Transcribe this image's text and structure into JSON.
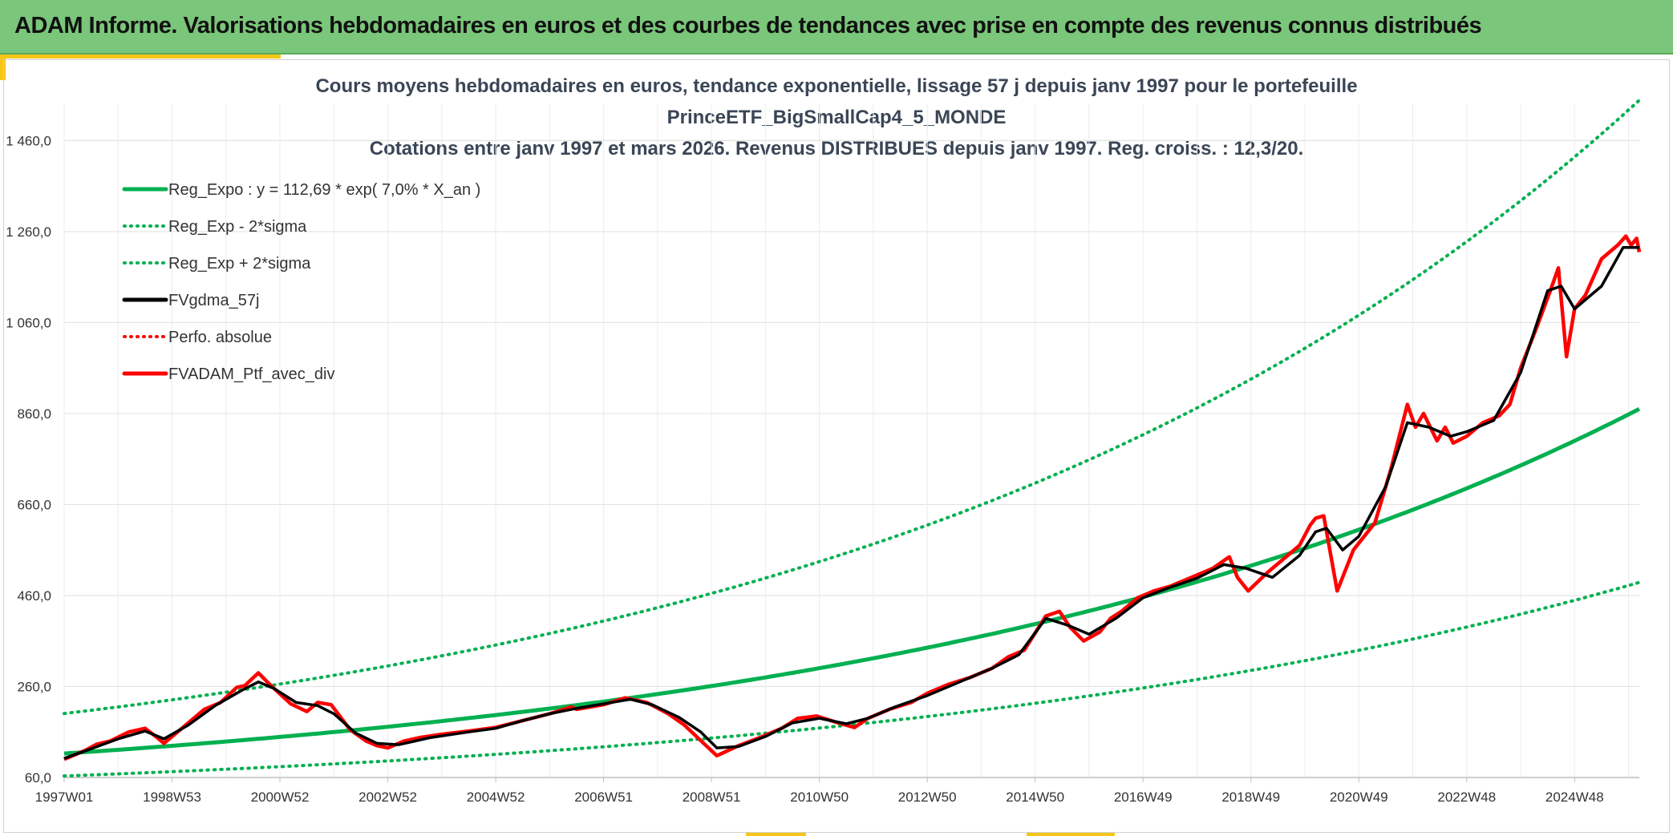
{
  "header": {
    "title": "ADAM Informe. Valorisations hebdomadaires en euros et des courbes de tendances avec prise en compte des revenus connus distribués"
  },
  "colors": {
    "header_bg": "#7ac67a",
    "accent": "#f5c518",
    "trend": "#00b050",
    "smooth": "#000000",
    "portfolio": "#ff0000"
  },
  "chart_data": {
    "type": "line",
    "title": "Cours moyens hebdomadaires en euros, tendance exponentielle, lissage 57 j depuis janv 1997 pour le portefeuille",
    "subtitle": "PrinceETF_BigSmallCap4_5_MONDE",
    "subtitle2": "Cotations entre janv 1997 et mars 2026. Revenus DISTRIBUES depuis janv 1997. Reg. croiss. : 12,3/20.",
    "xlabel": "",
    "ylabel": "",
    "x_range": [
      1997.0,
      2026.2
    ],
    "ylim": [
      60,
      1540
    ],
    "y_ticks": [
      60,
      260,
      460,
      660,
      860,
      1060,
      1260,
      1460
    ],
    "y_tick_labels": [
      "60,0",
      "260,0",
      "460,0",
      "660,0",
      "860,0",
      "1 060,0",
      "1 260,0",
      "1 460,0"
    ],
    "x_ticks": [
      1997.0,
      1999.0,
      2001.0,
      2003.0,
      2005.0,
      2007.0,
      2009.0,
      2011.0,
      2013.0,
      2015.0,
      2017.0,
      2019.0,
      2021.0,
      2023.0,
      2025.0
    ],
    "x_tick_labels": [
      "1997W01",
      "1998W53",
      "2000W52",
      "2002W52",
      "2004W52",
      "2006W51",
      "2008W51",
      "2010W50",
      "2012W50",
      "2014W50",
      "2016W49",
      "2018W49",
      "2020W49",
      "2022W48",
      "2024W48"
    ],
    "grid": true,
    "legend_position": "top-left",
    "regression": {
      "a": 112.69,
      "rate": 0.07,
      "x0": 1997.0,
      "sigma_factor": 1.78
    },
    "legend": [
      {
        "label": "Reg_Expo : y = 112,69 * exp( 7,0% *  X_an )",
        "color": "#00b050",
        "style": "solid"
      },
      {
        "label": "Reg_Exp - 2*sigma",
        "color": "#00b050",
        "style": "dotted"
      },
      {
        "label": "Reg_Exp + 2*sigma",
        "color": "#00b050",
        "style": "dotted"
      },
      {
        "label": "FVgdma_57j",
        "color": "#000000",
        "style": "solid"
      },
      {
        "label": "Perfo. absolue",
        "color": "#ff0000",
        "style": "dotted"
      },
      {
        "label": "FVADAM_Ptf_avec_div",
        "color": "#ff0000",
        "style": "solid"
      }
    ],
    "series": [
      {
        "name": "FVADAM_Ptf_avec_div",
        "x": [
          1997.0,
          1997.4,
          1997.6,
          1997.85,
          1998.2,
          1998.5,
          1998.7,
          1998.85,
          1999.2,
          1999.6,
          1999.9,
          2000.2,
          2000.35,
          2000.6,
          2000.85,
          2001.2,
          2001.5,
          2001.7,
          2001.95,
          2002.3,
          2002.6,
          2002.8,
          2003.0,
          2003.3,
          2003.6,
          2004.0,
          2004.5,
          2005.0,
          2005.5,
          2006.0,
          2006.4,
          2006.5,
          2007.0,
          2007.4,
          2007.8,
          2008.2,
          2008.5,
          2008.9,
          2009.1,
          2009.5,
          2009.9,
          2010.3,
          2010.6,
          2010.95,
          2011.3,
          2011.65,
          2011.9,
          2012.3,
          2012.7,
          2013.0,
          2013.4,
          2013.8,
          2014.2,
          2014.5,
          2014.8,
          2015.2,
          2015.45,
          2015.65,
          2015.9,
          2016.2,
          2016.4,
          2016.6,
          2016.9,
          2017.2,
          2017.5,
          2017.9,
          2018.3,
          2018.6,
          2018.75,
          2018.95,
          2019.3,
          2019.6,
          2019.9,
          2020.1,
          2020.2,
          2020.35,
          2020.6,
          2020.9,
          2021.3,
          2021.6,
          2021.9,
          2022.05,
          2022.2,
          2022.45,
          2022.6,
          2022.75,
          2023.0,
          2023.3,
          2023.6,
          2023.8,
          2024.0,
          2024.3,
          2024.55,
          2024.7,
          2024.85,
          2025.0,
          2025.2,
          2025.5,
          2025.8,
          2025.95,
          2026.05,
          2026.15,
          2026.2
        ],
        "values": [
          100,
          120,
          133,
          140,
          160,
          168,
          150,
          135,
          170,
          210,
          225,
          258,
          262,
          290,
          260,
          222,
          205,
          225,
          220,
          165,
          140,
          130,
          125,
          140,
          148,
          155,
          162,
          170,
          185,
          200,
          215,
          210,
          220,
          235,
          225,
          200,
          175,
          130,
          108,
          130,
          148,
          168,
          190,
          195,
          182,
          170,
          190,
          210,
          225,
          245,
          265,
          280,
          300,
          325,
          340,
          415,
          425,
          390,
          360,
          380,
          410,
          425,
          455,
          470,
          480,
          500,
          520,
          545,
          500,
          470,
          510,
          540,
          570,
          615,
          630,
          635,
          470,
          560,
          620,
          740,
          880,
          830,
          860,
          800,
          830,
          795,
          810,
          840,
          855,
          880,
          960,
          1050,
          1130,
          1180,
          985,
          1090,
          1120,
          1200,
          1230,
          1250,
          1230,
          1245,
          1215
        ]
      },
      {
        "name": "FVgdma_57j",
        "x": [
          1997.0,
          1997.5,
          1998.0,
          1998.5,
          1998.85,
          1999.3,
          1999.8,
          2000.3,
          2000.6,
          2000.9,
          2001.3,
          2001.7,
          2002.0,
          2002.4,
          2002.8,
          2003.2,
          2003.8,
          2004.5,
          2005.0,
          2005.5,
          2006.0,
          2006.5,
          2007.0,
          2007.5,
          2007.9,
          2008.4,
          2008.8,
          2009.1,
          2009.5,
          2010.0,
          2010.5,
          2011.0,
          2011.5,
          2011.9,
          2012.4,
          2013.0,
          2013.6,
          2014.2,
          2014.7,
          2015.2,
          2015.6,
          2016.0,
          2016.5,
          2017.0,
          2017.5,
          2018.0,
          2018.5,
          2018.9,
          2019.4,
          2019.9,
          2020.2,
          2020.4,
          2020.7,
          2021.0,
          2021.5,
          2021.9,
          2022.3,
          2022.7,
          2023.0,
          2023.5,
          2024.0,
          2024.5,
          2024.75,
          2025.0,
          2025.5,
          2025.9,
          2026.2
        ],
        "values": [
          102,
          123,
          145,
          162,
          145,
          175,
          218,
          252,
          270,
          255,
          225,
          218,
          200,
          158,
          135,
          132,
          148,
          160,
          168,
          185,
          200,
          212,
          222,
          232,
          220,
          192,
          160,
          125,
          128,
          150,
          180,
          190,
          178,
          190,
          215,
          240,
          270,
          300,
          330,
          410,
          395,
          375,
          410,
          455,
          478,
          498,
          528,
          520,
          500,
          548,
          600,
          608,
          560,
          590,
          700,
          840,
          830,
          810,
          820,
          845,
          950,
          1130,
          1140,
          1090,
          1140,
          1225,
          1225
        ]
      }
    ]
  }
}
